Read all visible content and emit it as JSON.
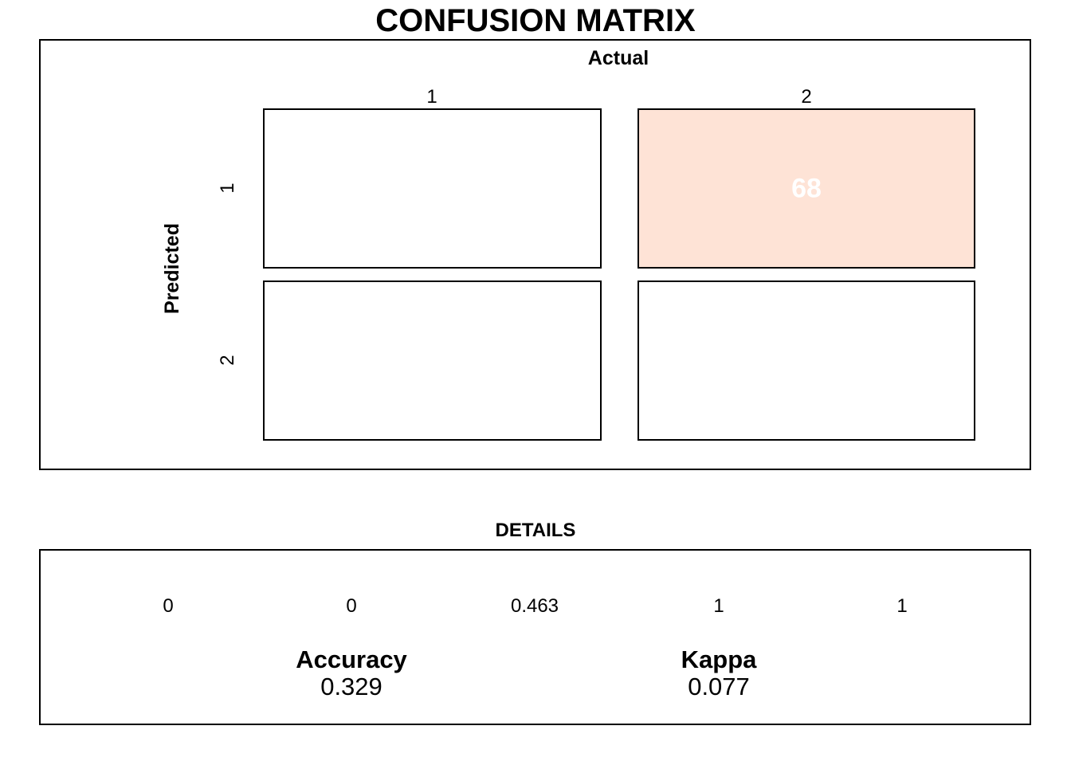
{
  "chart_data": {
    "type": "heatmap",
    "title": "CONFUSION MATRIX",
    "xlabel": "Actual",
    "ylabel": "Predicted",
    "col_labels": [
      "1",
      "2"
    ],
    "row_labels": [
      "1",
      "2"
    ],
    "cells": [
      [
        {
          "label": "",
          "color": "#ffffff"
        },
        {
          "label": "68",
          "color": "#fee3d6"
        }
      ],
      [
        {
          "label": "",
          "color": "#ffffff"
        },
        {
          "label": "",
          "color": "#ffffff"
        }
      ]
    ]
  },
  "details": {
    "title": "DETAILS",
    "values": [
      "0",
      "0",
      "0.463",
      "1",
      "1"
    ],
    "accuracy": {
      "label": "Accuracy",
      "value": "0.329"
    },
    "kappa": {
      "label": "Kappa",
      "value": "0.077"
    }
  }
}
